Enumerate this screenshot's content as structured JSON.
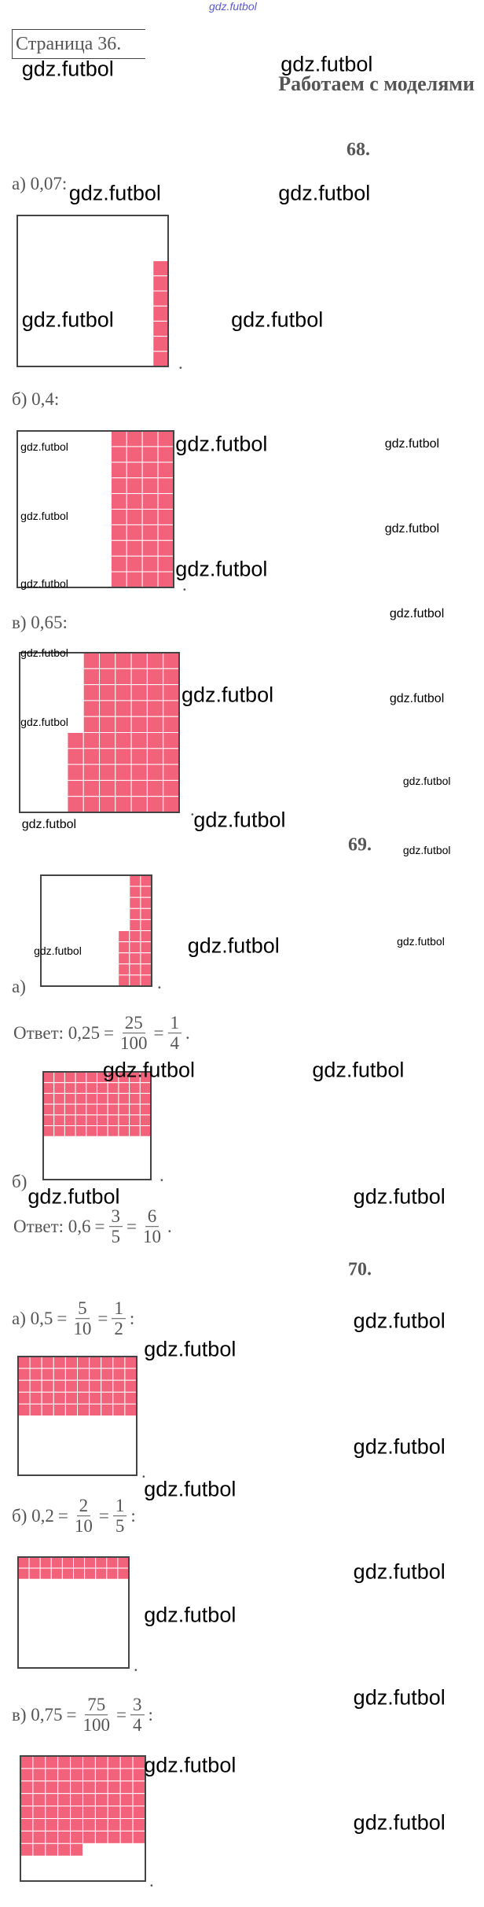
{
  "watermark_top": "gdz.futbol",
  "page_label": "Страница 36.",
  "title": "Работаем с моделями",
  "task_68": {
    "number": "68.",
    "parts": [
      {
        "tokens": [
          "а) 0,07:"
        ],
        "end": "."
      },
      {
        "tokens": [
          "б) 0,4:"
        ],
        "end": "."
      },
      {
        "tokens": [
          "в) 0,65:"
        ],
        "end": "."
      }
    ]
  },
  "task_69": {
    "number": "69.",
    "parts": [
      {
        "label": "а)",
        "end": ".",
        "answer": [
          "Ответ: 0,25",
          "=",
          {
            "num": "25",
            "den": "100"
          },
          "=",
          {
            "num": "1",
            "den": "4"
          },
          "."
        ]
      },
      {
        "label": "б)",
        "end": ".",
        "answer": [
          "Ответ: 0,6",
          "=",
          {
            "num": "3",
            "den": "5"
          },
          "=",
          {
            "num": "6",
            "den": "10"
          },
          "."
        ]
      }
    ]
  },
  "task_70": {
    "number": "70.",
    "parts": [
      {
        "tokens": [
          "а) 0,5",
          "=",
          {
            "num": "5",
            "den": "10"
          },
          "=",
          {
            "num": "1",
            "den": "2"
          },
          ":"
        ],
        "end": "."
      },
      {
        "tokens": [
          "б) 0,2",
          "=",
          {
            "num": "2",
            "den": "10"
          },
          "=",
          {
            "num": "1",
            "den": "5"
          },
          ":"
        ],
        "end": "."
      },
      {
        "tokens": [
          "в) 0,75",
          "=",
          {
            "num": "75",
            "den": "100"
          },
          "=",
          {
            "num": "3",
            "den": "4"
          },
          ":"
        ],
        "end": "."
      }
    ]
  },
  "watermarks": [
    "gdz.futbol",
    "gdz.futbol",
    "gdz.futbol",
    "gdz.futbol",
    "gdz.futbol",
    "gdz.futbol",
    "gdz.futbol",
    "gdz.futbol",
    "gdz.futbol",
    "gdz.futbol",
    "gdz.futbol",
    "gdz.futbol",
    "gdz.futbol",
    "gdz.futbol",
    "gdz.futbol",
    "gdz.futbol",
    "gdz.futbol",
    "gdz.futbol",
    "gdz.futbol",
    "gdz.futbol",
    "gdz.futbol",
    "gdz.futbol",
    "gdz.futbol",
    "gdz.futbol",
    "gdz.futbol",
    "gdz.futbol",
    "gdz.futbol",
    "gdz.futbol",
    "gdz.futbol",
    "gdz.futbol",
    "gdz.futbol",
    "gdz.futbol",
    "gdz.futbol",
    "gdz.futbol",
    "gdz.futbol",
    "gdz.futbol",
    "gdz.futbol",
    "gdz.futbol"
  ]
}
